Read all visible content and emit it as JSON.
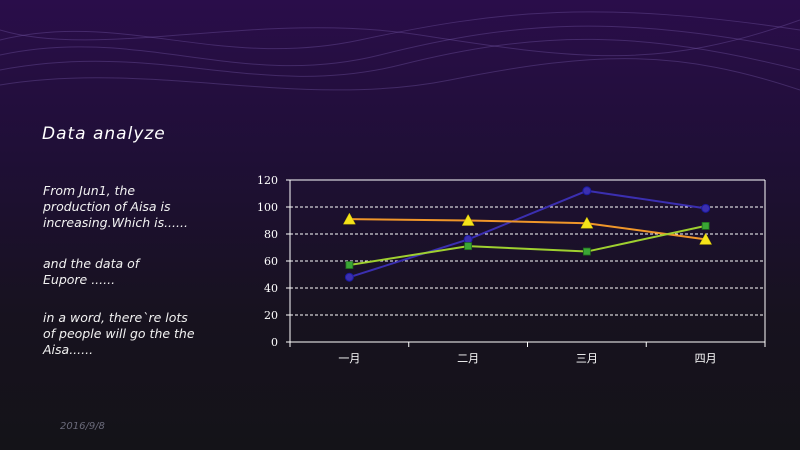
{
  "slide": {
    "title": "Data analyze",
    "paragraphs": [
      "From Jun1, the\nproduction  of Aisa is\nincreasing.Which is......",
      "and the data of\nEupore ......",
      "in a word, there`re lots\nof people will go the the\nAisa......"
    ],
    "date": "2016/9/8"
  },
  "chart_data": {
    "type": "line",
    "categories": [
      "一月",
      "二月",
      "三月",
      "四月"
    ],
    "ylim": [
      0,
      120
    ],
    "yticks": [
      "0",
      "20",
      "40",
      "60",
      "80",
      "100",
      "120"
    ],
    "grid": true,
    "title": "",
    "xlabel": "",
    "ylabel": "",
    "series": [
      {
        "values": [
          48,
          76,
          112,
          99
        ],
        "color": "#3b2fb0",
        "marker": "circle"
      },
      {
        "values": [
          91,
          90,
          88,
          76
        ],
        "color": "#f0962a",
        "marker": "triangle",
        "marker_color": "#f5e31a"
      },
      {
        "values": [
          57,
          71,
          67,
          86
        ],
        "color": "#9fd030",
        "marker": "square",
        "marker_color": "#3aa635"
      }
    ]
  }
}
